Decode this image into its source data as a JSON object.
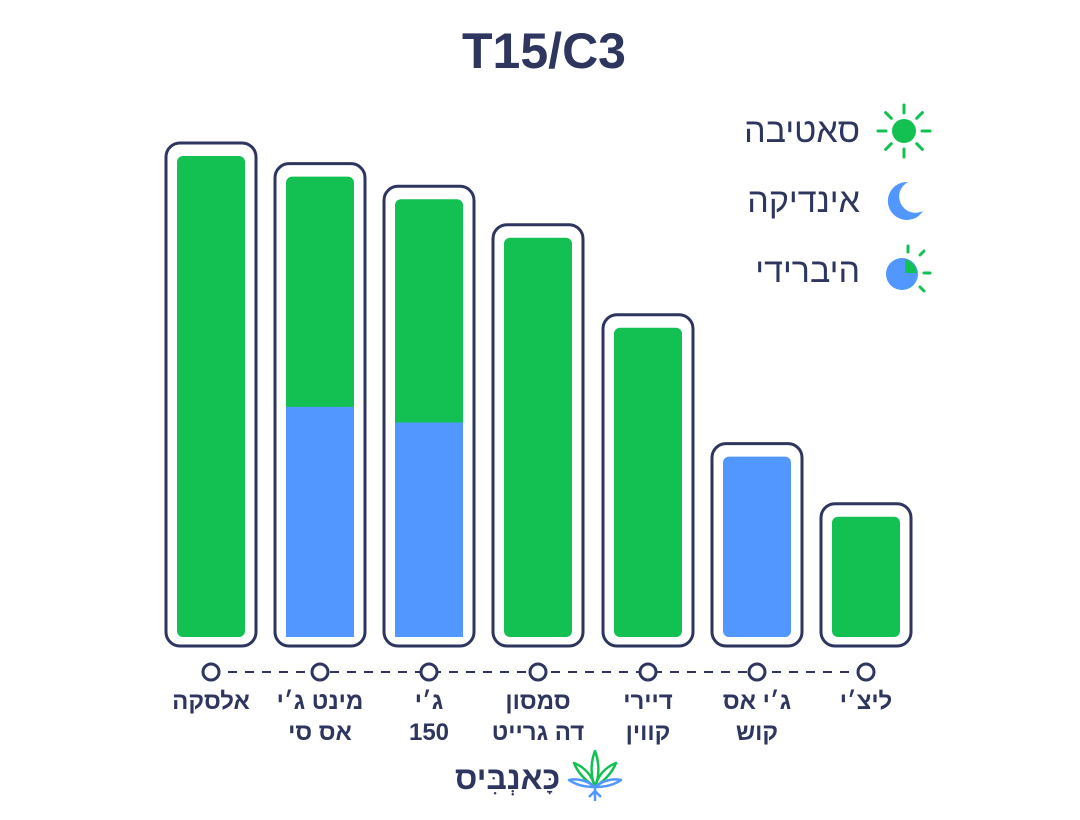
{
  "chart_data": {
    "type": "bar",
    "title": "T15/C3",
    "legend_position": "top-right",
    "legend": [
      {
        "key": "sativa",
        "label": "סאטיבה",
        "icon": "sun-icon",
        "color": "#12c152"
      },
      {
        "key": "indica",
        "label": "אינדיקה",
        "icon": "moon-icon",
        "color": "#5297ff"
      },
      {
        "key": "hybrid",
        "label": "היברידי",
        "icon": "sun-moon-icon",
        "color": "#12c152"
      }
    ],
    "categories": [
      {
        "lines": [
          "אלסקה"
        ]
      },
      {
        "lines": [
          "מינט ג׳י",
          "אס סי"
        ]
      },
      {
        "lines": [
          "ג׳י",
          "150"
        ]
      },
      {
        "lines": [
          "סמסון",
          "דה גרייט"
        ]
      },
      {
        "lines": [
          "דיירי",
          "קווין"
        ]
      },
      {
        "lines": [
          "ג׳י אס",
          "קוש"
        ]
      },
      {
        "lines": [
          "ליצ׳י"
        ]
      }
    ],
    "series": [
      {
        "key": "indica",
        "color": "#5297ff",
        "values": [
          0,
          0.5,
          0.49,
          0,
          0,
          1.0,
          0
        ]
      },
      {
        "key": "sativa",
        "color": "#12c152",
        "values": [
          1.0,
          0.5,
          0.51,
          1.0,
          1.0,
          0,
          1.0
        ]
      }
    ],
    "totals": [
      100,
      95.7,
      91.0,
      83.0,
      64.3,
      37.5,
      25.0
    ],
    "ylim": [
      0,
      100
    ],
    "grid": false,
    "brand": {
      "text": "כָּאנְבִּיס"
    },
    "colors": {
      "outline": "#2e3660",
      "sativa": "#12c152",
      "indica": "#5297ff"
    }
  }
}
